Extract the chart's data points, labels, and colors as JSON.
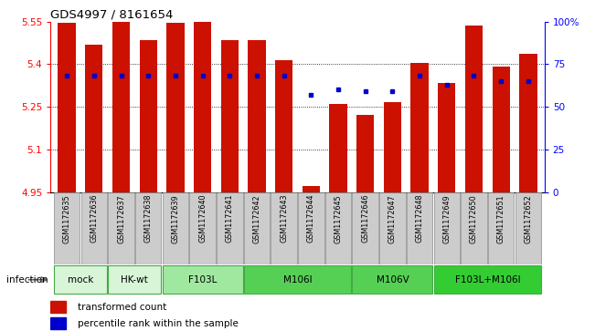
{
  "title": "GDS4997 / 8161654",
  "samples": [
    "GSM1172635",
    "GSM1172636",
    "GSM1172637",
    "GSM1172638",
    "GSM1172639",
    "GSM1172640",
    "GSM1172641",
    "GSM1172642",
    "GSM1172643",
    "GSM1172644",
    "GSM1172645",
    "GSM1172646",
    "GSM1172647",
    "GSM1172648",
    "GSM1172649",
    "GSM1172650",
    "GSM1172651",
    "GSM1172652"
  ],
  "bar_heights": [
    5.545,
    5.47,
    5.548,
    5.485,
    5.545,
    5.55,
    5.485,
    5.485,
    5.415,
    4.97,
    5.26,
    5.22,
    5.265,
    5.405,
    5.335,
    5.535,
    5.39,
    5.435
  ],
  "percentile_values": [
    68,
    68,
    68,
    68,
    68,
    68,
    68,
    68,
    68,
    57,
    60,
    59,
    59,
    68,
    63,
    68,
    65,
    65
  ],
  "group_defs": [
    {
      "label": "mock",
      "indices": [
        0,
        1
      ],
      "color": "#d8f5d8"
    },
    {
      "label": "HK-wt",
      "indices": [
        2,
        3
      ],
      "color": "#d8f5d8"
    },
    {
      "label": "F103L",
      "indices": [
        4,
        5,
        6
      ],
      "color": "#a0e8a0"
    },
    {
      "label": "M106I",
      "indices": [
        7,
        8,
        9,
        10
      ],
      "color": "#55d055"
    },
    {
      "label": "M106V",
      "indices": [
        11,
        12,
        13
      ],
      "color": "#55d055"
    },
    {
      "label": "F103L+M106I",
      "indices": [
        14,
        15,
        16,
        17
      ],
      "color": "#33cc33"
    }
  ],
  "ymin": 4.95,
  "ymax": 5.55,
  "yticks": [
    4.95,
    5.1,
    5.25,
    5.4,
    5.55
  ],
  "ytick_labels": [
    "4.95",
    "5.1",
    "5.25",
    "5.4",
    "5.55"
  ],
  "right_yticks": [
    0,
    25,
    50,
    75,
    100
  ],
  "right_ytick_labels": [
    "0",
    "25",
    "50",
    "75",
    "100%"
  ],
  "bar_color": "#cc1100",
  "dot_color": "#0000cc",
  "legend_items": [
    {
      "label": "transformed count",
      "color": "#cc1100"
    },
    {
      "label": "percentile rank within the sample",
      "color": "#0000cc"
    }
  ]
}
